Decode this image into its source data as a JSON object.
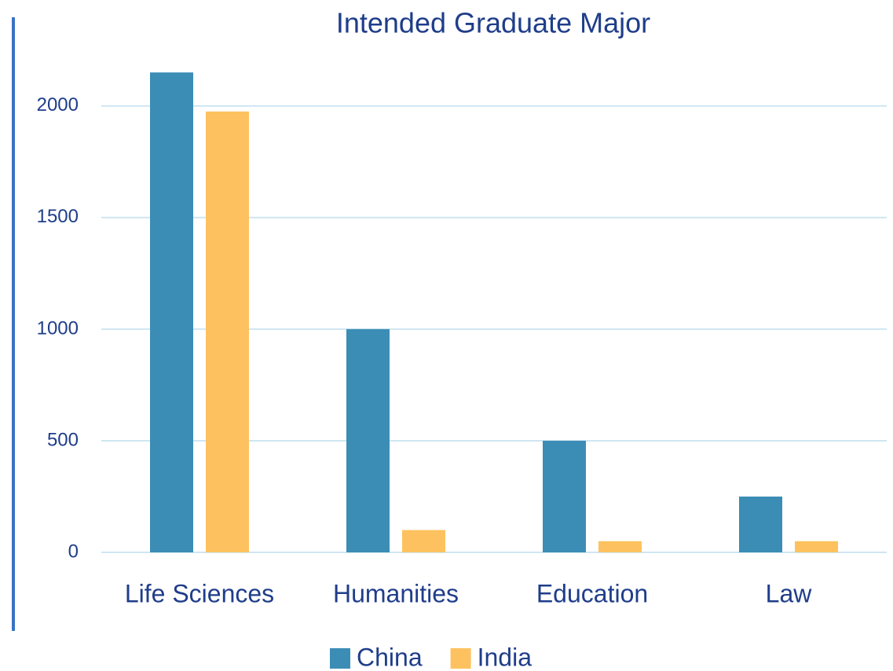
{
  "chart_data": {
    "type": "bar",
    "title": "Intended Graduate Major",
    "categories": [
      "Life Sciences",
      "Humanities",
      "Education",
      "Law"
    ],
    "series": [
      {
        "name": "China",
        "color": "#3b8db5",
        "values": [
          2150,
          1000,
          500,
          250
        ]
      },
      {
        "name": "India",
        "color": "#fdc25f",
        "values": [
          1975,
          100,
          50,
          50
        ]
      }
    ],
    "ylim": [
      0,
      2200
    ],
    "yticks": [
      0,
      500,
      1000,
      1500,
      2000
    ],
    "grid": true,
    "legend": "bottom"
  }
}
